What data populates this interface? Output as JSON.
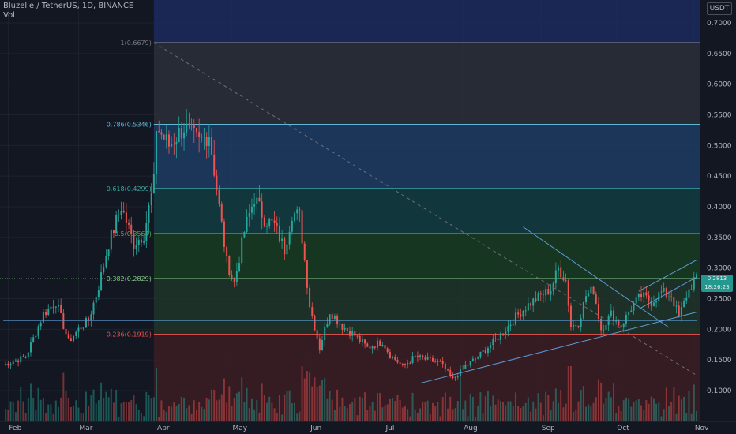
{
  "header": {
    "title": "Bluzelle / TetherUS, 1D, BINANCE",
    "volume_label": "Vol"
  },
  "currency_button": "USDT",
  "price_tag": {
    "price": "0.2813",
    "countdown": "18:26:23"
  },
  "colors": {
    "background": "#131722",
    "up": "#26a69a",
    "down": "#ef5350",
    "grid": "#1e222d",
    "axis_text": "#b2b5be",
    "fib_line": "#4a6fa5"
  },
  "chart_data": {
    "type": "candlestick",
    "title": "Bluzelle / TetherUS, 1D, BINANCE",
    "ylim": [
      0.055,
      0.72
    ],
    "y_ticks": [
      "0.1000",
      "0.1500",
      "0.2000",
      "0.2500",
      "0.3000",
      "0.3500",
      "0.4000",
      "0.4500",
      "0.5000",
      "0.5500",
      "0.6000",
      "0.6500",
      "0.7000"
    ],
    "x_ticks": [
      "Feb",
      "Mar",
      "Apr",
      "May",
      "Jun",
      "Jul",
      "Aug",
      "Sep",
      "Oct",
      "Nov"
    ],
    "x_tick_dates": [
      "2021-02-01",
      "2021-03-01",
      "2021-04-01",
      "2021-05-01",
      "2021-06-01",
      "2021-07-01",
      "2021-08-01",
      "2021-09-01",
      "2021-10-01",
      "2021-11-01"
    ],
    "date_range": [
      "2021-01-30",
      "2021-11-02"
    ],
    "fib_retracement": {
      "start_date": "2021-03-31",
      "levels": [
        {
          "ratio": "1",
          "price": 0.6679,
          "label": "1(0.6679)",
          "color": "#787b86",
          "fill": "#2a2e39"
        },
        {
          "ratio": "0.786",
          "price": 0.5346,
          "label": "0.786(0.5346)",
          "color": "#5fb8d8",
          "fill": "#1e3a5f"
        },
        {
          "ratio": "0.618",
          "price": 0.4299,
          "label": "0.618(0.4299)",
          "color": "#3aa6a0",
          "fill": "#123a3e"
        },
        {
          "ratio": "0.5",
          "price": 0.3564,
          "label": "0.5(0.3564)",
          "color": "#4caf50",
          "fill": "#173a22"
        },
        {
          "ratio": "0.382",
          "price": 0.2829,
          "label": "0.382(0.2829)",
          "color": "#81c784",
          "fill": "#1f3329"
        },
        {
          "ratio": "0.236",
          "price": 0.1919,
          "label": "0.236(0.1919)",
          "color": "#ef5350",
          "fill": "#3a1d24"
        }
      ],
      "band_top_fill": "#1c2a5e"
    },
    "trendlines": [
      {
        "from": [
          "2021-03-31",
          0.6679
        ],
        "to": [
          "2021-11-02",
          0.125
        ],
        "style": "dashed",
        "color": "#6b6f7a"
      },
      {
        "from": [
          "2021-07-15",
          0.112
        ],
        "to": [
          "2021-11-02",
          0.228
        ],
        "style": "solid",
        "color": "#5b9bd5"
      },
      {
        "from": [
          "2021-08-25",
          0.367
        ],
        "to": [
          "2021-10-22",
          0.203
        ],
        "style": "solid",
        "color": "#5b9bd5"
      },
      {
        "from": [
          "2021-10-10",
          0.262
        ],
        "to": [
          "2021-11-02",
          0.313
        ],
        "style": "solid",
        "color": "#5b9bd5"
      },
      {
        "from": [
          "2021-10-10",
          0.233
        ],
        "to": [
          "2021-11-02",
          0.285
        ],
        "style": "solid",
        "color": "#5b9bd5"
      },
      {
        "from": [
          "2021-01-30",
          0.2145
        ],
        "to": [
          "2021-11-02",
          0.2145
        ],
        "style": "solid",
        "color": "#5b9bd5"
      }
    ],
    "close_anchors": [
      [
        "2021-01-30",
        0.142
      ],
      [
        "2021-02-08",
        0.155
      ],
      [
        "2021-02-15",
        0.225
      ],
      [
        "2021-02-20",
        0.245
      ],
      [
        "2021-02-25",
        0.18
      ],
      [
        "2021-03-01",
        0.2
      ],
      [
        "2021-03-05",
        0.215
      ],
      [
        "2021-03-09",
        0.27
      ],
      [
        "2021-03-13",
        0.34
      ],
      [
        "2021-03-18",
        0.4
      ],
      [
        "2021-03-23",
        0.34
      ],
      [
        "2021-03-27",
        0.355
      ],
      [
        "2021-03-31",
        0.44
      ],
      [
        "2021-04-01",
        0.53
      ],
      [
        "2021-04-06",
        0.5
      ],
      [
        "2021-04-12",
        0.53
      ],
      [
        "2021-04-18",
        0.505
      ],
      [
        "2021-04-22",
        0.52
      ],
      [
        "2021-04-25",
        0.43
      ],
      [
        "2021-04-29",
        0.31
      ],
      [
        "2021-05-02",
        0.275
      ],
      [
        "2021-05-06",
        0.36
      ],
      [
        "2021-05-10",
        0.415
      ],
      [
        "2021-05-14",
        0.38
      ],
      [
        "2021-05-18",
        0.37
      ],
      [
        "2021-05-22",
        0.33
      ],
      [
        "2021-05-25",
        0.39
      ],
      [
        "2021-05-28",
        0.385
      ],
      [
        "2021-06-01",
        0.24
      ],
      [
        "2021-06-05",
        0.17
      ],
      [
        "2021-06-09",
        0.23
      ],
      [
        "2021-06-14",
        0.205
      ],
      [
        "2021-06-19",
        0.19
      ],
      [
        "2021-06-24",
        0.17
      ],
      [
        "2021-06-30",
        0.18
      ],
      [
        "2021-07-03",
        0.158
      ],
      [
        "2021-07-08",
        0.14
      ],
      [
        "2021-07-13",
        0.155
      ],
      [
        "2021-07-18",
        0.15
      ],
      [
        "2021-07-23",
        0.145
      ],
      [
        "2021-07-28",
        0.118
      ],
      [
        "2021-08-02",
        0.14
      ],
      [
        "2021-08-07",
        0.155
      ],
      [
        "2021-08-12",
        0.175
      ],
      [
        "2021-08-17",
        0.195
      ],
      [
        "2021-08-22",
        0.22
      ],
      [
        "2021-08-27",
        0.24
      ],
      [
        "2021-09-01",
        0.255
      ],
      [
        "2021-09-05",
        0.265
      ],
      [
        "2021-09-08",
        0.3
      ],
      [
        "2021-09-11",
        0.28
      ],
      [
        "2021-09-13",
        0.205
      ],
      [
        "2021-09-16",
        0.21
      ],
      [
        "2021-09-19",
        0.255
      ],
      [
        "2021-09-22",
        0.265
      ],
      [
        "2021-09-25",
        0.2
      ],
      [
        "2021-09-29",
        0.225
      ],
      [
        "2021-10-03",
        0.205
      ],
      [
        "2021-10-07",
        0.235
      ],
      [
        "2021-10-11",
        0.255
      ],
      [
        "2021-10-15",
        0.245
      ],
      [
        "2021-10-19",
        0.26
      ],
      [
        "2021-10-23",
        0.255
      ],
      [
        "2021-10-26",
        0.22
      ],
      [
        "2021-10-29",
        0.255
      ],
      [
        "2021-11-01",
        0.281
      ]
    ]
  }
}
